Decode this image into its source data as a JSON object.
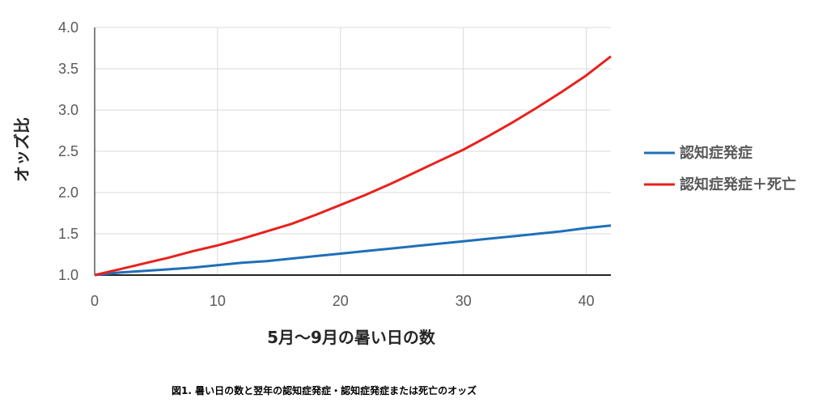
{
  "chart_data": {
    "type": "line",
    "xlabel": "5月～9月の暑い日の数",
    "ylabel": "オッズ比",
    "xlim": [
      0,
      42
    ],
    "ylim": [
      1.0,
      4.0
    ],
    "x_ticks": [
      "0",
      "10",
      "20",
      "30",
      "40"
    ],
    "y_ticks": [
      "1.0",
      "1.5",
      "2.0",
      "2.5",
      "3.0",
      "3.5",
      "4.0"
    ],
    "grid": true,
    "legend_position": "right",
    "x": [
      0,
      2,
      4,
      6,
      8,
      10,
      12,
      14,
      16,
      18,
      20,
      22,
      24,
      26,
      28,
      30,
      32,
      34,
      36,
      38,
      40,
      42
    ],
    "series": [
      {
        "name": "認知症発症",
        "color": "#1f6fb8",
        "values": [
          1.0,
          1.03,
          1.05,
          1.07,
          1.09,
          1.12,
          1.15,
          1.17,
          1.2,
          1.23,
          1.26,
          1.29,
          1.32,
          1.35,
          1.38,
          1.41,
          1.44,
          1.47,
          1.5,
          1.53,
          1.57,
          1.6
        ]
      },
      {
        "name": "認知症発症＋死亡",
        "color": "#e8211d",
        "values": [
          1.0,
          1.07,
          1.14,
          1.21,
          1.29,
          1.36,
          1.44,
          1.53,
          1.62,
          1.73,
          1.85,
          1.97,
          2.1,
          2.24,
          2.38,
          2.52,
          2.68,
          2.85,
          3.03,
          3.22,
          3.42,
          3.65
        ]
      }
    ]
  },
  "caption": "図1. 暑い日の数と翌年の認知症発症・認知症発症または死亡のオッズ"
}
